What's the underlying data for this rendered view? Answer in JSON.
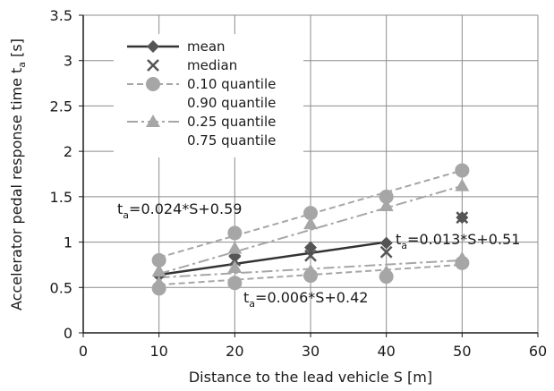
{
  "chart_data": {
    "type": "scatter",
    "xlabel": "Distance to the lead vehicle S [m]",
    "ylabel": "Accelerator pedal response time t",
    "ylabel_sub": "a",
    "ylabel_unit": " [s]",
    "xlim": [
      0,
      60
    ],
    "ylim": [
      0,
      3.5
    ],
    "xticks": [
      0,
      10,
      20,
      30,
      40,
      50,
      60
    ],
    "yticks": [
      0,
      0.5,
      1,
      1.5,
      2,
      2.5,
      3,
      3.5
    ],
    "xtick_labels": [
      "0",
      "10",
      "20",
      "30",
      "40",
      "50",
      "60"
    ],
    "ytick_labels": [
      "0",
      "0.5",
      "1",
      "1.5",
      "2",
      "2.5",
      "3",
      "3.5"
    ],
    "grid": true,
    "legend_position": "top-left",
    "series": [
      {
        "name": "mean",
        "marker": "diamond",
        "color": "#555555",
        "x": [
          10,
          20,
          30,
          40,
          50
        ],
        "y": [
          0.63,
          0.84,
          0.94,
          0.99,
          1.27
        ]
      },
      {
        "name": "median",
        "marker": "x",
        "color": "#555555",
        "x": [
          10,
          20,
          30,
          40,
          50
        ],
        "y": [
          0.58,
          0.8,
          0.85,
          0.89,
          1.27
        ]
      },
      {
        "name": "0.10 quantile",
        "marker": "circle",
        "color": "#a6a6a6",
        "x": [
          10,
          20,
          30,
          40,
          50
        ],
        "y": [
          0.49,
          0.55,
          0.63,
          0.62,
          0.77
        ]
      },
      {
        "name": "0.90 quantile",
        "marker": "circle",
        "color": "#a6a6a6",
        "x": [
          10,
          20,
          30,
          40,
          50
        ],
        "y": [
          0.8,
          1.1,
          1.32,
          1.5,
          1.79
        ]
      },
      {
        "name": "0.25 quantile",
        "marker": "triangle",
        "color": "#a6a6a6",
        "x": [
          10,
          20,
          30,
          40,
          50
        ],
        "y": [
          0.55,
          0.72,
          0.68,
          0.67,
          0.82
        ]
      },
      {
        "name": "0.75 quantile",
        "marker": "triangle",
        "color": "#a6a6a6",
        "x": [
          10,
          20,
          30,
          40,
          50
        ],
        "y": [
          0.68,
          0.93,
          1.2,
          1.4,
          1.62
        ]
      }
    ],
    "fit_lines": [
      {
        "series": "mean",
        "style": "solid",
        "color": "#333333",
        "x": [
          10,
          40
        ],
        "y": [
          0.64,
          1.0
        ]
      },
      {
        "series": "0.10 quantile",
        "style": "dash",
        "color": "#a6a6a6",
        "x": [
          10,
          50
        ],
        "y": [
          0.53,
          0.75
        ]
      },
      {
        "series": "0.90 quantile",
        "style": "dash",
        "color": "#a6a6a6",
        "x": [
          10,
          50
        ],
        "y": [
          0.83,
          1.79
        ]
      },
      {
        "series": "0.25 quantile",
        "style": "dashdot",
        "color": "#a6a6a6",
        "x": [
          10,
          50
        ],
        "y": [
          0.61,
          0.8
        ]
      },
      {
        "series": "0.75 quantile",
        "style": "dashdot",
        "color": "#a6a6a6",
        "x": [
          10,
          50
        ],
        "y": [
          0.65,
          1.62
        ]
      }
    ],
    "annotations": [
      {
        "base": "t",
        "sub": "a",
        "rest": "=0.024*S+0.59"
      },
      {
        "base": "t",
        "sub": "a",
        "rest": "=0.013*S+0.51"
      },
      {
        "base": "t",
        "sub": "a",
        "rest": "=0.006*S+0.42"
      }
    ]
  }
}
